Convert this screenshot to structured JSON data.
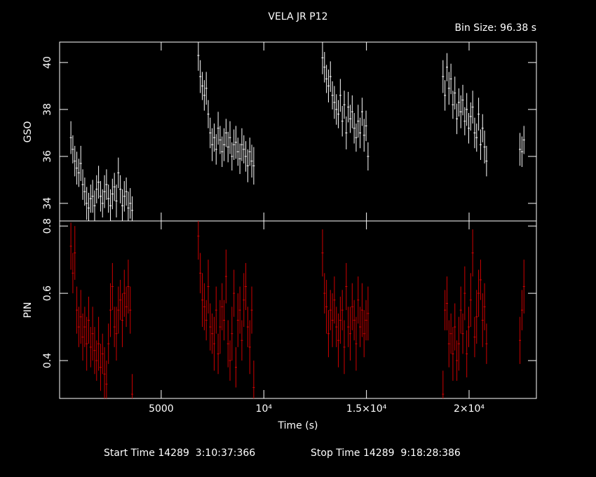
{
  "chart_data": [
    {
      "type": "errorbar",
      "title": "VELA JR P12",
      "subtitle": "Bin Size: 96.38 s",
      "ylabel": "GSO",
      "color": "#ffffff",
      "xlim": [
        50,
        23280
      ],
      "ylim": [
        33.25,
        40.87
      ],
      "yticks": [
        34,
        36,
        38,
        40
      ],
      "x": [
        600,
        696,
        793,
        889,
        986,
        1082,
        1178,
        1275,
        1371,
        1467,
        1564,
        1660,
        1757,
        1853,
        1949,
        2046,
        2142,
        2238,
        2335,
        2431,
        2528,
        2624,
        2720,
        2817,
        2913,
        3010,
        3106,
        3202,
        3299,
        3395,
        3492,
        3588,
        6810,
        6906,
        7003,
        7099,
        7196,
        7292,
        7388,
        7485,
        7581,
        7677,
        7774,
        7870,
        7967,
        8063,
        8159,
        8256,
        8352,
        8448,
        8545,
        8641,
        8738,
        8834,
        8930,
        9027,
        9123,
        9219,
        9316,
        9412,
        9509,
        12860,
        12956,
        13053,
        13149,
        13245,
        13342,
        13438,
        13535,
        13631,
        13727,
        13824,
        13920,
        14017,
        14113,
        14209,
        14306,
        14402,
        14498,
        14595,
        14691,
        14788,
        14884,
        14980,
        15077,
        18730,
        18826,
        18923,
        19019,
        19116,
        19212,
        19308,
        19405,
        19501,
        19597,
        19694,
        19790,
        19887,
        19983,
        20079,
        20176,
        20272,
        20368,
        20465,
        20561,
        20658,
        20754,
        20850,
        22480,
        22577,
        22673
      ],
      "values": [
        36.8,
        36.3,
        35.8,
        35.5,
        35.3,
        35.7,
        34.8,
        34.5,
        34.0,
        33.8,
        34.2,
        34.3,
        33.9,
        34.6,
        34.9,
        34.3,
        34.0,
        34.5,
        34.8,
        34.2,
        33.9,
        34.4,
        34.7,
        34.1,
        35.3,
        34.6,
        33.9,
        34.3,
        34.5,
        33.8,
        34.0,
        33.7,
        40.3,
        39.4,
        39.0,
        38.6,
        38.9,
        37.8,
        37.0,
        36.5,
        36.8,
        36.3,
        37.2,
        36.7,
        36.2,
        36.5,
        37.0,
        36.4,
        36.8,
        36.0,
        36.5,
        36.6,
        36.2,
        35.9,
        36.5,
        36.3,
        36.0,
        35.6,
        36.2,
        35.8,
        35.6,
        40.2,
        39.8,
        39.3,
        39.0,
        39.4,
        38.6,
        38.3,
        38.0,
        37.8,
        38.6,
        37.5,
        38.2,
        37.0,
        38.1,
        37.6,
        37.9,
        37.2,
        36.8,
        37.5,
        37.0,
        37.9,
        36.9,
        37.3,
        36.0,
        39.4,
        38.6,
        39.8,
        38.9,
        39.3,
        38.2,
        38.7,
        37.6,
        38.3,
        37.9,
        38.4,
        37.5,
        38.0,
        37.2,
        37.7,
        38.1,
        37.0,
        36.8,
        37.8,
        36.5,
        37.2,
        36.4,
        35.8,
        36.3,
        36.2,
        36.7
      ],
      "errors": [
        0.7,
        0.6,
        0.65,
        0.7,
        0.6,
        0.75,
        0.65,
        0.6,
        0.7,
        0.65,
        0.6,
        0.7,
        0.65,
        0.6,
        0.7,
        0.65,
        0.6,
        0.7,
        0.65,
        0.6,
        0.7,
        0.65,
        0.6,
        0.7,
        0.65,
        0.6,
        0.7,
        0.65,
        0.6,
        0.7,
        0.65,
        0.6,
        0.65,
        0.7,
        0.6,
        0.65,
        0.7,
        0.6,
        0.65,
        0.7,
        0.6,
        0.65,
        0.7,
        0.6,
        0.65,
        0.7,
        0.6,
        0.65,
        0.7,
        0.6,
        0.65,
        0.7,
        0.6,
        0.65,
        0.7,
        0.6,
        0.65,
        0.7,
        0.6,
        0.7,
        0.8,
        0.7,
        0.65,
        0.6,
        0.7,
        0.65,
        0.6,
        0.7,
        0.65,
        0.6,
        0.7,
        0.65,
        0.6,
        0.7,
        0.65,
        0.6,
        0.7,
        0.65,
        0.6,
        0.7,
        0.65,
        0.6,
        0.7,
        0.65,
        0.6,
        0.7,
        0.65,
        0.6,
        0.7,
        0.65,
        0.6,
        0.7,
        0.65,
        0.6,
        0.7,
        0.65,
        0.6,
        0.7,
        0.65,
        0.6,
        0.7,
        0.65,
        0.6,
        0.7,
        0.65,
        0.6,
        0.7,
        0.65,
        0.7,
        0.65,
        0.6
      ]
    },
    {
      "type": "errorbar",
      "xlabel": "Time (s)",
      "ylabel": "PIN",
      "color": "#d00000",
      "xlim": [
        50,
        23280
      ],
      "xticks": [
        5000,
        {
          "value": 10000,
          "label": "10⁴"
        },
        {
          "value": 15000,
          "label": "1.5×10⁴"
        },
        {
          "value": 20000,
          "label": "2×10⁴"
        }
      ],
      "ylim": [
        0.2875,
        0.815
      ],
      "yticks": [
        0.4,
        0.6,
        0.8
      ],
      "x": [
        600,
        696,
        793,
        889,
        986,
        1082,
        1178,
        1275,
        1371,
        1467,
        1564,
        1660,
        1757,
        1853,
        1949,
        2046,
        2142,
        2238,
        2335,
        2431,
        2528,
        2624,
        2720,
        2817,
        2913,
        3010,
        3106,
        3202,
        3299,
        3395,
        3492,
        3588,
        6810,
        6906,
        7003,
        7099,
        7196,
        7292,
        7388,
        7485,
        7581,
        7677,
        7774,
        7870,
        7967,
        8063,
        8159,
        8256,
        8352,
        8448,
        8545,
        8641,
        8738,
        8834,
        8930,
        9027,
        9123,
        9219,
        9316,
        9412,
        9509,
        12860,
        12956,
        13053,
        13149,
        13245,
        13342,
        13438,
        13535,
        13631,
        13727,
        13824,
        13920,
        14017,
        14113,
        14209,
        14306,
        14402,
        14498,
        14595,
        14691,
        14788,
        14884,
        14980,
        15077,
        18730,
        18826,
        18923,
        19019,
        19116,
        19212,
        19308,
        19405,
        19501,
        19597,
        19694,
        19790,
        19887,
        19983,
        20079,
        20176,
        20272,
        20368,
        20465,
        20561,
        20658,
        20754,
        20850,
        22480,
        22577,
        22673
      ],
      "values": [
        0.74,
        0.66,
        0.72,
        0.55,
        0.5,
        0.53,
        0.47,
        0.5,
        0.45,
        0.52,
        0.44,
        0.48,
        0.43,
        0.4,
        0.45,
        0.38,
        0.42,
        0.36,
        0.33,
        0.45,
        0.55,
        0.62,
        0.5,
        0.48,
        0.55,
        0.58,
        0.52,
        0.6,
        0.56,
        0.62,
        0.55,
        0.3,
        0.77,
        0.66,
        0.58,
        0.56,
        0.52,
        0.62,
        0.5,
        0.48,
        0.45,
        0.55,
        0.42,
        0.5,
        0.56,
        0.52,
        0.65,
        0.45,
        0.4,
        0.48,
        0.6,
        0.38,
        0.52,
        0.55,
        0.46,
        0.58,
        0.62,
        0.5,
        0.44,
        0.55,
        0.32,
        0.72,
        0.6,
        0.56,
        0.48,
        0.55,
        0.52,
        0.58,
        0.5,
        0.46,
        0.52,
        0.55,
        0.44,
        0.62,
        0.5,
        0.48,
        0.56,
        0.52,
        0.45,
        0.58,
        0.5,
        0.55,
        0.48,
        0.52,
        0.54,
        0.3,
        0.55,
        0.57,
        0.45,
        0.48,
        0.42,
        0.5,
        0.4,
        0.45,
        0.55,
        0.48,
        0.6,
        0.42,
        0.5,
        0.58,
        0.72,
        0.47,
        0.53,
        0.6,
        0.64,
        0.52,
        0.56,
        0.45,
        0.46,
        0.55,
        0.62
      ],
      "errors": [
        0.07,
        0.06,
        0.08,
        0.07,
        0.06,
        0.08,
        0.07,
        0.06,
        0.08,
        0.07,
        0.06,
        0.08,
        0.07,
        0.06,
        0.08,
        0.07,
        0.06,
        0.08,
        0.07,
        0.06,
        0.08,
        0.07,
        0.06,
        0.08,
        0.07,
        0.06,
        0.08,
        0.07,
        0.06,
        0.08,
        0.07,
        0.06,
        0.07,
        0.06,
        0.08,
        0.07,
        0.06,
        0.08,
        0.07,
        0.06,
        0.08,
        0.07,
        0.06,
        0.08,
        0.07,
        0.06,
        0.08,
        0.07,
        0.06,
        0.08,
        0.07,
        0.06,
        0.08,
        0.07,
        0.06,
        0.08,
        0.07,
        0.06,
        0.08,
        0.07,
        0.08,
        0.07,
        0.06,
        0.08,
        0.07,
        0.06,
        0.08,
        0.07,
        0.06,
        0.08,
        0.07,
        0.06,
        0.08,
        0.07,
        0.06,
        0.08,
        0.07,
        0.06,
        0.08,
        0.07,
        0.06,
        0.08,
        0.07,
        0.06,
        0.08,
        0.07,
        0.06,
        0.08,
        0.07,
        0.06,
        0.08,
        0.07,
        0.06,
        0.08,
        0.07,
        0.06,
        0.08,
        0.07,
        0.06,
        0.08,
        0.07,
        0.06,
        0.08,
        0.07,
        0.06,
        0.08,
        0.07,
        0.06,
        0.07,
        0.06,
        0.08
      ]
    }
  ],
  "footer": {
    "start": "Start Time 14289  3:10:37:366",
    "stop": "Stop Time 14289  9:18:28:386"
  }
}
